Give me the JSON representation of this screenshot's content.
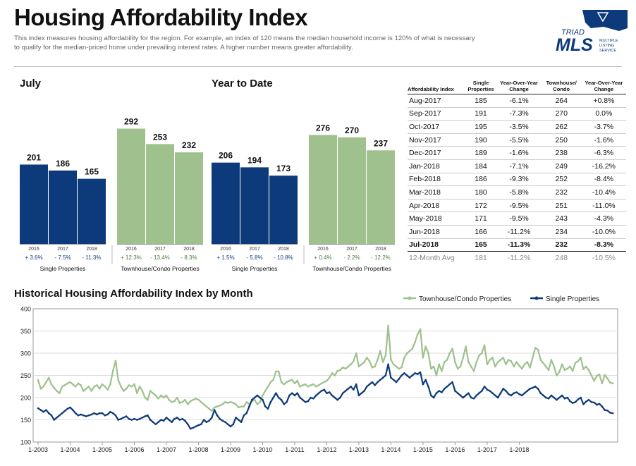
{
  "header": {
    "title": "Housing Affordability Index",
    "subtitle": "This index measures housing affordability for the region. For example, an index of 120 means the median household income is 120% of what is necessary to qualify for the median-priced home under prevailing interest rates. A higher number means greater affordability."
  },
  "logo": {
    "line1": "TRIAD",
    "line2": "MLS",
    "tag1": "MULTIPLE",
    "tag2": "LISTING",
    "tag3": "SERVICE"
  },
  "colors": {
    "single": "#0d3a7a",
    "townhouse": "#9ec18d",
    "change_single": "#0d3a7a",
    "change_townhouse": "#4a7a3a"
  },
  "chart_data": [
    {
      "type": "bar",
      "title": "July",
      "groups": [
        {
          "name": "Single Properties",
          "categories": [
            "2016",
            "2017",
            "2018"
          ],
          "values": [
            201,
            186,
            165
          ],
          "changes": [
            "+ 3.6%",
            "- 7.5%",
            "- 11.3%"
          ]
        },
        {
          "name": "Townhouse/Condo Properties",
          "categories": [
            "2016",
            "2017",
            "2018"
          ],
          "values": [
            292,
            253,
            232
          ],
          "changes": [
            "+ 12.3%",
            "- 13.4%",
            "- 8.3%"
          ]
        }
      ]
    },
    {
      "type": "bar",
      "title": "Year to Date",
      "groups": [
        {
          "name": "Single Properties",
          "categories": [
            "2016",
            "2017",
            "2018"
          ],
          "values": [
            206,
            194,
            173
          ],
          "changes": [
            "+ 1.5%",
            "- 5.8%",
            "- 10.8%"
          ]
        },
        {
          "name": "Townhouse/Condo Properties",
          "categories": [
            "2016",
            "2017",
            "2018"
          ],
          "values": [
            276,
            270,
            237
          ],
          "changes": [
            "+ 0.4%",
            "- 2.2%",
            "- 12.2%"
          ]
        }
      ]
    },
    {
      "type": "table",
      "headers": [
        "Affordability Index",
        "Single Properties",
        "Year-Over-Year Change",
        "Townhouse/ Condo",
        "Year-Over-Year Change"
      ],
      "rows": [
        [
          "Aug-2017",
          "185",
          "-6.1%",
          "264",
          "+0.8%"
        ],
        [
          "Sep-2017",
          "191",
          "-7.3%",
          "270",
          "0.0%"
        ],
        [
          "Oct-2017",
          "195",
          "-3.5%",
          "262",
          "-3.7%"
        ],
        [
          "Nov-2017",
          "190",
          "-5.5%",
          "250",
          "-1.6%"
        ],
        [
          "Dec-2017",
          "189",
          "-1.6%",
          "238",
          "-6.3%"
        ],
        [
          "Jan-2018",
          "184",
          "-7.1%",
          "249",
          "-16.2%"
        ],
        [
          "Feb-2018",
          "186",
          "-9.3%",
          "252",
          "-8.4%"
        ],
        [
          "Mar-2018",
          "180",
          "-5.8%",
          "232",
          "-10.4%"
        ],
        [
          "Apr-2018",
          "172",
          "-9.5%",
          "251",
          "-11.0%"
        ],
        [
          "May-2018",
          "171",
          "-9.5%",
          "243",
          "-4.3%"
        ],
        [
          "Jun-2018",
          "166",
          "-11.2%",
          "234",
          "-10.0%"
        ],
        [
          "Jul-2018",
          "165",
          "-11.3%",
          "232",
          "-8.3%"
        ]
      ],
      "summary": [
        "12-Month Avg",
        "181",
        "-11.2%",
        "248",
        "-10.5%"
      ]
    },
    {
      "type": "line",
      "title": "Historical Housing Affordability Index by Month",
      "ylim": [
        100,
        400
      ],
      "yticks": [
        100,
        150,
        200,
        250,
        300,
        350,
        400
      ],
      "xticks": [
        "1-2003",
        "1-2004",
        "1-2005",
        "1-2006",
        "1-2007",
        "1-2008",
        "1-2009",
        "1-2010",
        "1-2011",
        "1-2012",
        "1-2013",
        "1-2014",
        "1-2015",
        "1-2016",
        "1-2017",
        "1-2018"
      ],
      "x_start": "1-2003",
      "x_end": "7-2018",
      "legend_position": "top-right",
      "series": [
        {
          "name": "Townhouse/Condo Properties",
          "values": [
            240,
            220,
            225,
            235,
            245,
            230,
            222,
            215,
            210,
            225,
            228,
            232,
            235,
            230,
            225,
            232,
            228,
            215,
            220,
            225,
            215,
            225,
            228,
            220,
            230,
            225,
            218,
            230,
            260,
            283,
            240,
            225,
            215,
            220,
            228,
            225,
            230,
            210,
            225,
            215,
            200,
            195,
            215,
            210,
            205,
            198,
            205,
            200,
            205,
            195,
            190,
            192,
            200,
            188,
            190,
            195,
            185,
            192,
            195,
            198,
            195,
            190,
            185,
            180,
            175,
            170,
            178,
            180,
            182,
            185,
            190,
            188,
            190,
            188,
            185,
            178,
            180,
            180,
            190,
            185,
            192,
            195,
            185,
            190,
            205,
            215,
            225,
            235,
            240,
            259,
            259,
            235,
            230,
            235,
            238,
            240,
            232,
            238,
            225,
            228,
            230,
            225,
            228,
            230,
            225,
            228,
            232,
            235,
            238,
            245,
            255,
            250,
            260,
            262,
            268,
            265,
            270,
            275,
            282,
            300,
            270,
            275,
            280,
            290,
            282,
            268,
            270,
            285,
            305,
            280,
            295,
            362,
            285,
            275,
            270,
            265,
            268,
            290,
            300,
            305,
            310,
            325,
            343,
            354,
            290,
            315,
            300,
            265,
            270,
            250,
            275,
            260,
            280,
            285,
            300,
            310,
            280,
            265,
            270,
            290,
            315,
            280,
            270,
            260,
            280,
            295,
            300,
            318,
            275,
            285,
            290,
            270,
            280,
            285,
            290,
            275,
            285,
            282,
            270,
            280,
            272,
            265,
            275,
            280,
            268,
            290,
            312,
            308,
            285,
            278,
            270,
            262,
            285,
            270,
            250,
            258,
            275,
            262,
            265,
            270,
            260,
            278,
            282,
            290,
            264,
            270,
            262,
            250,
            238,
            249,
            252,
            232,
            251,
            243,
            234,
            232
          ]
        },
        {
          "name": "Single Properties",
          "values": [
            176,
            172,
            168,
            172,
            165,
            160,
            150,
            155,
            160,
            165,
            170,
            175,
            178,
            172,
            165,
            160,
            162,
            160,
            158,
            160,
            162,
            165,
            162,
            165,
            165,
            160,
            162,
            168,
            165,
            160,
            150,
            152,
            155,
            158,
            152,
            150,
            152,
            150,
            152,
            155,
            158,
            160,
            150,
            145,
            140,
            145,
            150,
            148,
            155,
            150,
            145,
            152,
            155,
            150,
            152,
            148,
            140,
            130,
            132,
            135,
            138,
            140,
            150,
            145,
            148,
            155,
            172,
            160,
            152,
            148,
            145,
            140,
            135,
            140,
            155,
            150,
            145,
            160,
            165,
            180,
            195,
            200,
            205,
            200,
            195,
            180,
            175,
            190,
            200,
            210,
            200,
            195,
            185,
            190,
            205,
            210,
            205,
            210,
            200,
            195,
            190,
            192,
            200,
            198,
            205,
            210,
            215,
            218,
            210,
            212,
            205,
            200,
            195,
            200,
            210,
            215,
            220,
            225,
            218,
            230,
            205,
            210,
            215,
            225,
            230,
            235,
            228,
            235,
            240,
            245,
            250,
            275,
            245,
            240,
            235,
            242,
            250,
            255,
            250,
            245,
            250,
            255,
            253,
            257,
            230,
            240,
            225,
            205,
            200,
            210,
            215,
            212,
            220,
            225,
            230,
            235,
            215,
            210,
            205,
            200,
            205,
            210,
            200,
            198,
            205,
            210,
            215,
            225,
            218,
            215,
            210,
            205,
            200,
            210,
            220,
            215,
            208,
            205,
            210,
            212,
            208,
            205,
            210,
            215,
            220,
            222,
            225,
            220,
            210,
            205,
            200,
            198,
            205,
            200,
            195,
            200,
            205,
            198,
            200,
            192,
            188,
            190,
            196,
            200,
            185,
            191,
            195,
            190,
            189,
            184,
            186,
            180,
            172,
            171,
            166,
            165
          ]
        }
      ]
    }
  ]
}
